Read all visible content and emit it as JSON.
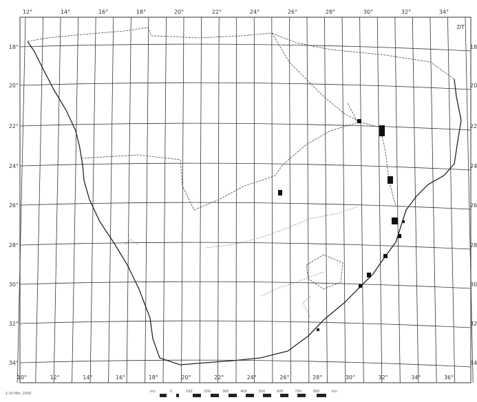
{
  "map": {
    "corner_code": "DT",
    "top_longitudes": [
      "12°",
      "14°",
      "16°",
      "18°",
      "20°",
      "22°",
      "24°",
      "26°",
      "28°",
      "30°",
      "32°",
      "34°"
    ],
    "bottom_longitudes": [
      "10°",
      "12°",
      "14°",
      "16°",
      "18°",
      "20°",
      "22°",
      "24°",
      "26°",
      "28°",
      "30°",
      "32°",
      "34°",
      "36°"
    ],
    "left_latitudes": [
      "18°",
      "20°",
      "22°",
      "24°",
      "26°",
      "28°",
      "30°",
      "32°",
      "34°"
    ],
    "right_latitudes": [
      "18",
      "20",
      "22",
      "24",
      "26",
      "28",
      "30",
      "32",
      "34"
    ],
    "footnote": "1:10 Mio. 2000",
    "scale_labels": [
      "km",
      "0",
      "100",
      "200",
      "300",
      "400",
      "500",
      "600",
      "700",
      "800",
      "km"
    ],
    "colors": {
      "lines": "#222222",
      "grid": "#333333",
      "marker": "#111111",
      "border": "#555555"
    }
  }
}
